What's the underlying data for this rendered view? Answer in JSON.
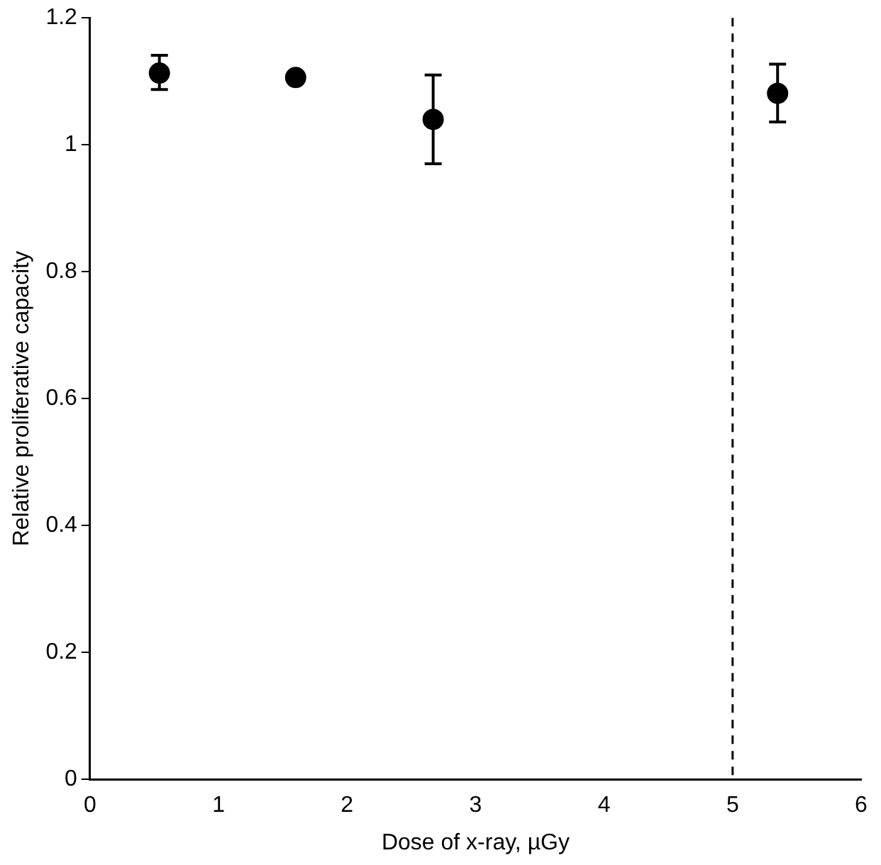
{
  "chart_data": {
    "type": "scatter",
    "xlabel": "Dose of x-ray, µGy",
    "ylabel": "Relative proliferative capacity",
    "x": [
      0.54,
      1.6,
      2.67,
      5.35
    ],
    "series": [
      {
        "color": "#000000",
        "values": [
          1.113,
          1.106,
          1.04,
          1.081
        ],
        "errors": [
          [
            1.087,
            1.141
          ],
          null,
          [
            0.97,
            1.11
          ],
          [
            1.036,
            1.127
          ]
        ]
      }
    ],
    "xlim": [
      0,
      6
    ],
    "xticks": [
      0,
      1,
      2,
      3,
      4,
      5,
      6
    ],
    "ylim": [
      0,
      1.2
    ],
    "yticks": [
      0,
      0.2,
      0.4,
      0.6,
      0.8,
      1,
      1.2
    ],
    "ref_lines": [
      {
        "axis": "x",
        "value": 5,
        "line_style": "dashed",
        "color": "#000000"
      }
    ],
    "grid": false,
    "legend": false,
    "marker": "circle"
  }
}
